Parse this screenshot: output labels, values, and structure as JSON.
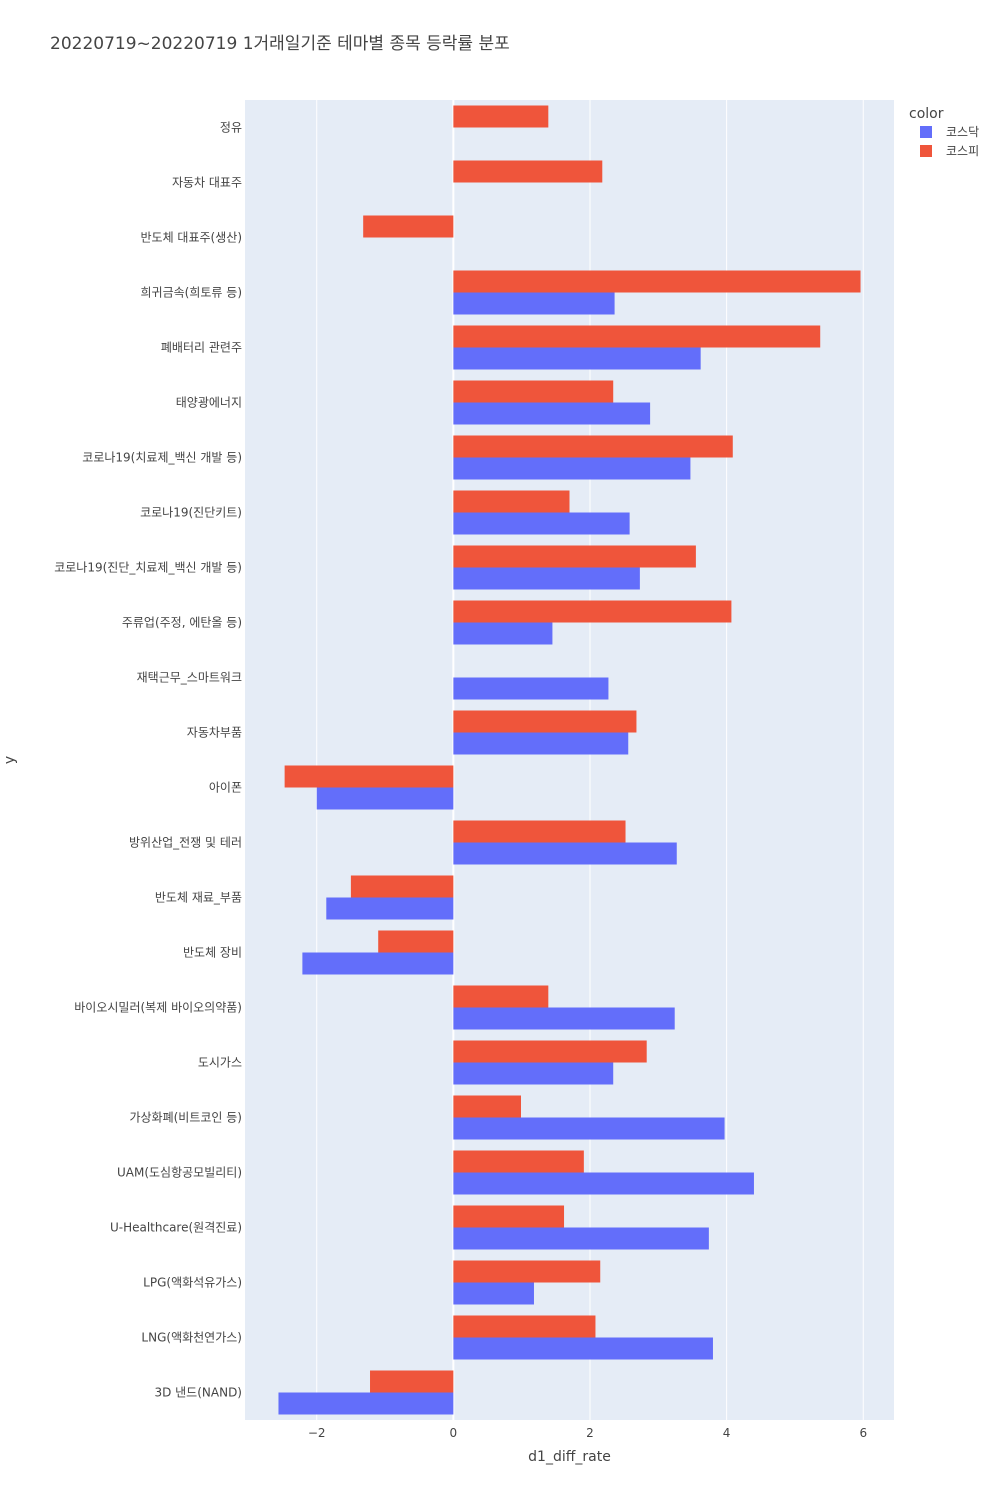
{
  "chart_data": {
    "type": "bar",
    "orientation": "horizontal",
    "barmode": "group",
    "title": "20220719~20220719 1거래일기준 테마별 종목 등락률 분포",
    "xlabel": "d1_diff_rate",
    "ylabel": "y",
    "xlim": [
      -3.05,
      6.45
    ],
    "xticks": [
      -2,
      0,
      2,
      4,
      6
    ],
    "xtick_labels": [
      "−2",
      "0",
      "2",
      "4",
      "6"
    ],
    "grid": true,
    "legend": {
      "title": "color",
      "placement": "top-right"
    },
    "categories": [
      "정유",
      "자동차 대표주",
      "반도체 대표주(생산)",
      "희귀금속(희토류 등)",
      "폐배터리 관련주",
      "태양광에너지",
      "코로나19(치료제_백신 개발 등)",
      "코로나19(진단키트)",
      "코로나19(진단_치료제_백신 개발 등)",
      "주류업(주정, 에탄올 등)",
      "재택근무_스마트워크",
      "자동차부품",
      "아이폰",
      "방위산업_전쟁 및 테러",
      "반도체 재료_부품",
      "반도체 장비",
      "바이오시밀러(복제 바이오의약품)",
      "도시가스",
      "가상화폐(비트코인 등)",
      "UAM(도심항공모빌리티)",
      "U-Healthcare(원격진료)",
      "LPG(액화석유가스)",
      "LNG(액화천연가스)",
      "3D 낸드(NAND)"
    ],
    "series": [
      {
        "name": "코스닥",
        "color": "#636efa",
        "values": [
          null,
          null,
          null,
          2.36,
          3.62,
          2.88,
          3.47,
          2.58,
          2.73,
          1.45,
          2.27,
          2.56,
          -2.0,
          3.27,
          -1.86,
          -2.21,
          3.24,
          2.34,
          3.97,
          4.4,
          3.74,
          1.18,
          3.8,
          -2.56
        ]
      },
      {
        "name": "코스피",
        "color": "#ef553b",
        "values": [
          1.39,
          2.18,
          -1.32,
          5.96,
          5.37,
          2.34,
          4.09,
          1.7,
          3.55,
          4.07,
          null,
          2.68,
          -2.47,
          2.52,
          -1.5,
          -1.1,
          1.39,
          2.83,
          0.99,
          1.91,
          1.62,
          2.15,
          2.08,
          -1.22
        ]
      }
    ]
  }
}
